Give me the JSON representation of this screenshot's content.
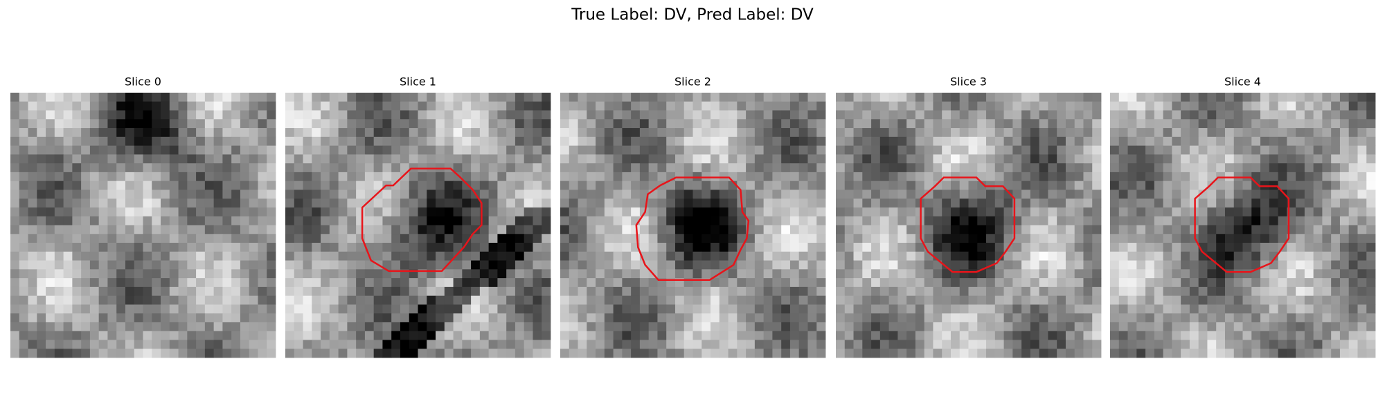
{
  "header": {
    "title": "True Label: DV, Pred Label: DV"
  },
  "panels": [
    {
      "title": "Slice 0"
    },
    {
      "title": "Slice 1"
    },
    {
      "title": "Slice 2"
    },
    {
      "title": "Slice 3"
    },
    {
      "title": "Slice 4"
    }
  ]
}
